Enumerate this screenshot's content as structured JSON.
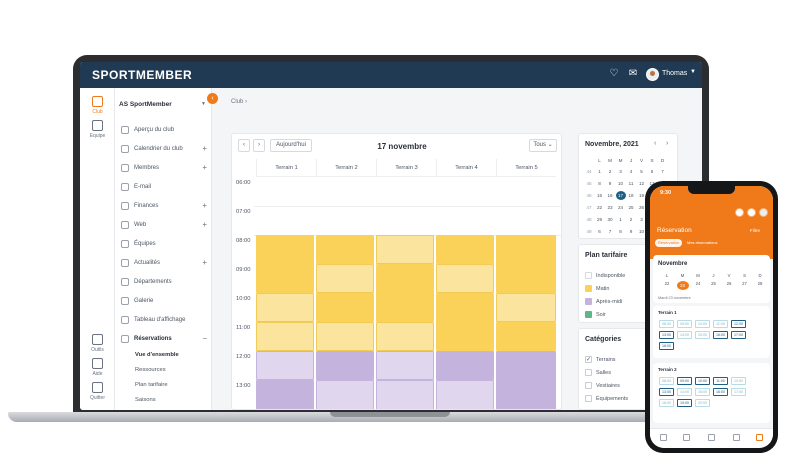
{
  "app": {
    "logo": "SPORTMEMBER",
    "user_name": "Thomas"
  },
  "rail": [
    {
      "label": "Club",
      "icon": "club-icon",
      "active": true
    },
    {
      "label": "Equipe",
      "icon": "team-icon",
      "active": false
    },
    {
      "label": "Outils",
      "icon": "tools-icon",
      "active": false
    },
    {
      "label": "Aide",
      "icon": "help-icon",
      "active": false
    },
    {
      "label": "Quitter",
      "icon": "logout-icon",
      "active": false
    }
  ],
  "sidebar": {
    "club_name": "AS SportMember",
    "items": [
      {
        "label": "Aperçu du club",
        "plus": ""
      },
      {
        "label": "Calendrier du club",
        "plus": "+"
      },
      {
        "label": "Membres",
        "plus": "+"
      },
      {
        "label": "E-mail",
        "plus": ""
      },
      {
        "label": "Finances",
        "plus": "+"
      },
      {
        "label": "Web",
        "plus": "+"
      },
      {
        "label": "Équipes",
        "plus": ""
      },
      {
        "label": "Actualités",
        "plus": "+"
      },
      {
        "label": "Départements",
        "plus": ""
      },
      {
        "label": "Galerie",
        "plus": ""
      },
      {
        "label": "Tableau d'affichage",
        "plus": ""
      },
      {
        "label": "Réservations",
        "plus": "−"
      }
    ],
    "sub_items": [
      "Vue d'ensemble",
      "Ressources",
      "Plan tarifaire",
      "Saisons"
    ]
  },
  "breadcrumb": {
    "label": "Club",
    "sep": "›"
  },
  "calendar": {
    "prev": "‹",
    "next": "›",
    "today_label": "Aujourd'hui",
    "title": "17 novembre",
    "filter_label": "Tous ⌄",
    "columns": [
      "Terrain 1",
      "Terrain 2",
      "Terrain 3",
      "Terrain 4",
      "Terrain 5"
    ],
    "times": [
      "06:00",
      "07:00",
      "08:00",
      "09:00",
      "10:00",
      "11:00",
      "12:00",
      "13:00"
    ]
  },
  "mini_calendar": {
    "title": "Novembre, 2021",
    "prev": "‹",
    "next": "›",
    "headers": [
      "",
      "L",
      "M",
      "M",
      "J",
      "V",
      "S",
      "D"
    ],
    "rows": [
      [
        "44",
        "1",
        "2",
        "3",
        "4",
        "5",
        "6",
        "7"
      ],
      [
        "45",
        "8",
        "9",
        "10",
        "11",
        "12",
        "13",
        "14"
      ],
      [
        "46",
        "15",
        "16",
        "17",
        "18",
        "19",
        "20",
        "21"
      ],
      [
        "47",
        "22",
        "23",
        "24",
        "25",
        "26",
        "27",
        "28"
      ],
      [
        "48",
        "29",
        "30",
        "1",
        "2",
        "3",
        "4",
        "5"
      ],
      [
        "49",
        "6",
        "7",
        "8",
        "9",
        "10",
        "11",
        "12"
      ]
    ],
    "today": "17"
  },
  "rate_plan": {
    "title": "Plan tarifaire",
    "items": [
      {
        "label": "Indisponible",
        "color": "#ffffff"
      },
      {
        "label": "Matin",
        "color": "#fad25a"
      },
      {
        "label": "Après-midi",
        "color": "#c4b3dd"
      },
      {
        "label": "Soir",
        "color": "#5cb88a"
      }
    ]
  },
  "categories": {
    "title": "Catégories",
    "items": [
      {
        "label": "Terrains",
        "checked": true
      },
      {
        "label": "Salles",
        "checked": false
      },
      {
        "label": "Vestiaires",
        "checked": false
      },
      {
        "label": "Équipements",
        "checked": false
      }
    ]
  },
  "phone": {
    "time": "9:30",
    "title": "Réservation",
    "filter": "Filtre",
    "tab_active": "Réservation",
    "tab_other": "Mes réservations",
    "month": "Novembre",
    "day_headers": [
      "L",
      "M",
      "M",
      "J",
      "V",
      "S",
      "D"
    ],
    "days": [
      "22",
      "23",
      "24",
      "25",
      "26",
      "27",
      "28"
    ],
    "today": "23",
    "date_label": "Mardi 23 novembre",
    "courts": [
      {
        "name": "Terrain 1"
      },
      {
        "name": "Terrain 2"
      }
    ],
    "slot_labels": [
      "08:00",
      "09:00",
      "10:00",
      "11:00",
      "12:00",
      "13:00",
      "14:00",
      "15:00",
      "16:00",
      "17:00",
      "18:00",
      "19:00",
      "20:00",
      "21:00",
      "22:00"
    ]
  },
  "colors": {
    "brand_dark": "#1f3a52",
    "accent": "#f07a1a",
    "morning": "#fad25a",
    "afternoon": "#c4b3dd"
  }
}
